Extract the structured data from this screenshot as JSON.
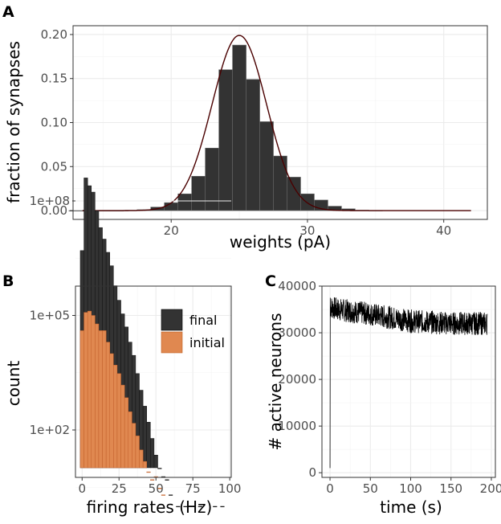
{
  "chart_data": [
    {
      "panel": "A",
      "type": "bar",
      "xlabel": "weights (pA)",
      "ylabel": "fraction of synapses",
      "xlim": [
        12.8,
        43.2
      ],
      "ylim": [
        -0.01,
        0.21
      ],
      "x_ticks": [
        20,
        30,
        40
      ],
      "y_ticks": [
        0.0,
        0.05,
        0.1,
        0.15,
        0.2
      ],
      "y_tick_labels": [
        "0.00",
        "0.05",
        "0.10",
        "0.15",
        "0.20"
      ],
      "bin_width": 1,
      "bins": [
        {
          "x": 13,
          "y": 0
        },
        {
          "x": 14,
          "y": 0
        },
        {
          "x": 15,
          "y": 0
        },
        {
          "x": 16,
          "y": 0
        },
        {
          "x": 17,
          "y": 0.0003
        },
        {
          "x": 18,
          "y": 0.001
        },
        {
          "x": 19,
          "y": 0.004
        },
        {
          "x": 20,
          "y": 0.009
        },
        {
          "x": 21,
          "y": 0.019
        },
        {
          "x": 22,
          "y": 0.039
        },
        {
          "x": 23,
          "y": 0.071
        },
        {
          "x": 24,
          "y": 0.16
        },
        {
          "x": 25,
          "y": 0.188
        },
        {
          "x": 26,
          "y": 0.149
        },
        {
          "x": 27,
          "y": 0.101
        },
        {
          "x": 28,
          "y": 0.062
        },
        {
          "x": 29,
          "y": 0.038
        },
        {
          "x": 30,
          "y": 0.019
        },
        {
          "x": 31,
          "y": 0.012
        },
        {
          "x": 32,
          "y": 0.005
        },
        {
          "x": 33,
          "y": 0.002
        },
        {
          "x": 34,
          "y": 0.0005
        },
        {
          "x": 35,
          "y": 0.0002
        }
      ],
      "fit_curve": {
        "type": "gaussian",
        "mean": 25,
        "sd": 2,
        "peak": 0.199,
        "x_range": [
          13.5,
          42
        ],
        "color": "#4a0000"
      },
      "bar_color": "#333333"
    },
    {
      "panel": "B",
      "type": "bar",
      "xlabel": "firing rates (Hz)",
      "ylabel": "count",
      "scale_y": "log10",
      "xlim": [
        -4.5,
        101
      ],
      "x_ticks": [
        0,
        25,
        50,
        75,
        100
      ],
      "y_ticks": [
        100,
        100000,
        100000000
      ],
      "y_tick_labels": [
        "1e+02",
        "1e+05",
        "1e+08"
      ],
      "bin_width": 2.5,
      "series": [
        {
          "name": "final",
          "color": "#333333",
          "x": [
            0,
            2.5,
            5,
            7.5,
            10,
            12.5,
            15,
            17.5,
            20,
            22.5,
            25,
            27.5,
            30,
            32.5,
            35,
            37.5,
            40,
            42.5,
            45,
            47.5,
            50,
            52.5,
            55,
            57.5,
            60,
            65,
            70,
            80,
            90,
            95
          ],
          "values": [
            5000000,
            400000000,
            250000000,
            170000000,
            55000000,
            20000000,
            10000000,
            4500000,
            2000000,
            600000,
            250000,
            110000,
            50000,
            20000,
            9000,
            3000,
            1100,
            420,
            160,
            60,
            22,
            10,
            6,
            5,
            2,
            1,
            1,
            1,
            1,
            1
          ]
        },
        {
          "name": "initial",
          "color": "#e08850",
          "x": [
            0,
            2.5,
            5,
            7.5,
            10,
            12.5,
            15,
            17.5,
            20,
            22.5,
            25,
            27.5,
            30,
            32.5,
            35,
            37.5,
            40,
            42.5,
            45,
            47.5,
            50,
            52.5,
            55
          ],
          "values": [
            40000,
            120000,
            130000,
            100000,
            60000,
            40000,
            40000,
            20000,
            10000,
            5000,
            3000,
            1500,
            700,
            300,
            150,
            70,
            30,
            15,
            8,
            5,
            6,
            3,
            2
          ]
        }
      ],
      "legend": {
        "entries": [
          "final",
          "initial"
        ],
        "position": "top-right"
      }
    },
    {
      "panel": "C",
      "type": "line",
      "xlabel": "time (s)",
      "ylabel": "# active neurons",
      "xlim": [
        -10,
        205
      ],
      "ylim": [
        -1000,
        40000
      ],
      "x_ticks": [
        0,
        50,
        100,
        150,
        200
      ],
      "y_ticks": [
        0,
        10000,
        20000,
        30000,
        40000
      ],
      "y_tick_labels": [
        "0",
        "10000",
        "20000",
        "30000",
        "40000"
      ],
      "series": [
        {
          "name": "active neurons",
          "color": "#000000",
          "start": {
            "t": 0,
            "v": 1000
          },
          "trend": {
            "t": [
              0.5,
              10,
              50,
              100,
              150,
              195
            ],
            "v": [
              35500,
              35000,
              34000,
              32500,
              32000,
              32000
            ]
          },
          "band_halfwidth": 2500
        }
      ]
    }
  ]
}
